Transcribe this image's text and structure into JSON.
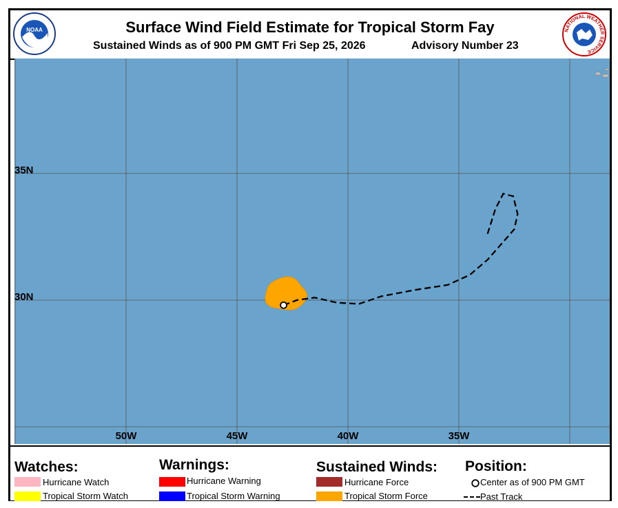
{
  "header": {
    "title": "Surface Wind Field Estimate for Tropical Storm Fay",
    "subtitle": "Sustained Winds as of 900 PM GMT Fri Sep 25, 2026",
    "advisory": "Advisory Number 23",
    "left_logo_text": "NOAA",
    "right_logo_text": "NATIONAL WEATHER SERVICE"
  },
  "map": {
    "colors": {
      "ocean": "#6aa3cc",
      "grid": "#555555",
      "wind_tropical_storm": "#ffa500",
      "land": "#bbbbbb"
    },
    "latitude_labels": [
      "35N",
      "30N"
    ],
    "longitude_labels": [
      "50W",
      "45W",
      "40W",
      "35W"
    ],
    "storm_center": {
      "lon": -42.9,
      "lat": 29.8
    },
    "past_track": [
      [
        -42.9,
        29.8
      ],
      [
        -42.3,
        30.0
      ],
      [
        -41.5,
        30.1
      ],
      [
        -40.5,
        29.9
      ],
      [
        -39.5,
        29.85
      ],
      [
        -38.5,
        30.15
      ],
      [
        -37.0,
        30.4
      ],
      [
        -35.5,
        30.6
      ],
      [
        -34.5,
        31.0
      ],
      [
        -33.7,
        31.6
      ],
      [
        -33.0,
        32.3
      ],
      [
        -32.5,
        32.8
      ],
      [
        -32.35,
        33.4
      ],
      [
        -32.55,
        34.1
      ],
      [
        -33.0,
        34.2
      ],
      [
        -33.35,
        33.6
      ],
      [
        -33.75,
        32.5
      ]
    ]
  },
  "legend": {
    "watches": {
      "title": "Watches:",
      "items": [
        {
          "label": "Hurricane Watch",
          "color": "#ffb6c1"
        },
        {
          "label": "Tropical Storm Watch",
          "color": "#ffff00"
        }
      ]
    },
    "warnings": {
      "title": "Warnings:",
      "items": [
        {
          "label": "Hurricane Warning",
          "color": "#ff0000"
        },
        {
          "label": "Tropical Storm Warning",
          "color": "#0000ff"
        }
      ]
    },
    "sustained_winds": {
      "title": "Sustained Winds:",
      "items": [
        {
          "label": "Hurricane Force",
          "color": "#a52a2a"
        },
        {
          "label": "Tropical Storm Force",
          "color": "#ffa500"
        }
      ]
    },
    "position": {
      "title": "Position:",
      "center_label": "Center as of 900 PM GMT",
      "track_label": "Past Track"
    }
  }
}
